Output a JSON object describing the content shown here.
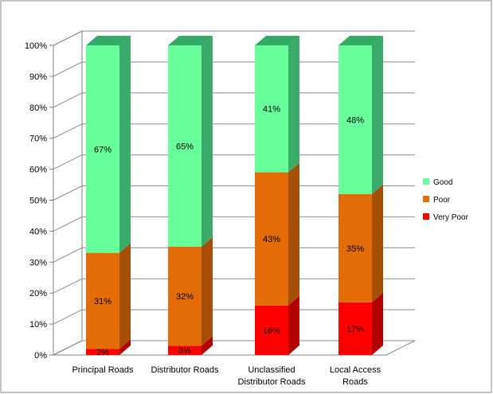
{
  "chart_data": {
    "type": "bar",
    "stacked": true,
    "percent_stacked": true,
    "three_d": true,
    "categories": [
      [
        "Principal Roads"
      ],
      [
        "Distributor Roads"
      ],
      [
        "Unclassified",
        "Distributor Roads"
      ],
      [
        "Local Access",
        "Roads"
      ]
    ],
    "series": [
      {
        "name": "Very Poor",
        "color": "#ff0000",
        "side_color": "#b30000",
        "top_color": "#cc0000",
        "values": [
          2,
          3,
          16,
          17
        ]
      },
      {
        "name": "Poor",
        "color": "#e36c09",
        "side_color": "#a64f06",
        "top_color": "#c45c07",
        "values": [
          31,
          32,
          43,
          35
        ]
      },
      {
        "name": "Good",
        "color": "#66ff99",
        "side_color": "#3caa6a",
        "top_color": "#33aa66",
        "values": [
          67,
          65,
          41,
          48
        ]
      }
    ],
    "data_labels": [
      [
        "2%",
        "3%",
        "16%",
        "17%"
      ],
      [
        "31%",
        "32%",
        "43%",
        "35%"
      ],
      [
        "67%",
        "65%",
        "41%",
        "48%"
      ]
    ],
    "y_ticks": [
      "0%",
      "10%",
      "20%",
      "30%",
      "40%",
      "50%",
      "60%",
      "70%",
      "80%",
      "90%",
      "100%"
    ],
    "ylim": [
      0,
      100
    ],
    "grid": true,
    "legend": {
      "position": "right",
      "order": [
        "Good",
        "Poor",
        "Very Poor"
      ]
    }
  }
}
